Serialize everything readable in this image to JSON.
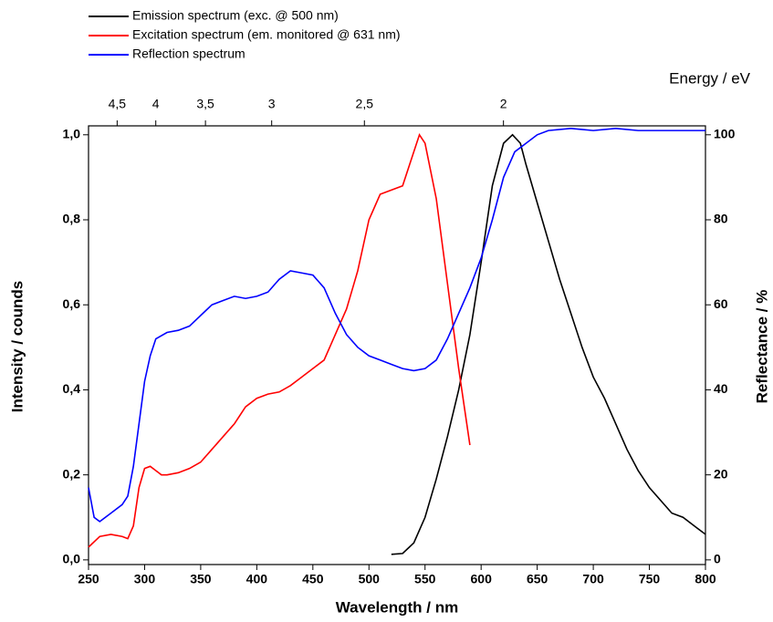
{
  "chart_data": {
    "type": "line",
    "xlabel": "Wavelength / nm",
    "ylabel": "Intensity / counds",
    "y2label": "Reflectance / %",
    "x2label": "Energy / eV",
    "xlim": [
      250,
      800
    ],
    "xticks": [
      250,
      300,
      350,
      400,
      450,
      500,
      550,
      600,
      650,
      700,
      750,
      800
    ],
    "ylim": [
      -0.011,
      1.021
    ],
    "yticks": [
      {
        "value": 0,
        "label": "0,0"
      },
      {
        "value": 0.2,
        "label": "0,2"
      },
      {
        "value": 0.4,
        "label": "0,4"
      },
      {
        "value": 0.6,
        "label": "0,6"
      },
      {
        "value": 0.8,
        "label": "0,8"
      },
      {
        "value": 1.0,
        "label": "1,0"
      }
    ],
    "y2lim": [
      -1.1,
      102.1
    ],
    "y2ticks": [
      0,
      20,
      40,
      60,
      80,
      100
    ],
    "x2ticks": [
      {
        "value": 4.5,
        "label": "4,5"
      },
      {
        "value": 4,
        "label": "4"
      },
      {
        "value": 3.5,
        "label": "3,5"
      },
      {
        "value": 3,
        "label": "3"
      },
      {
        "value": 2.5,
        "label": "2,5"
      },
      {
        "value": 2,
        "label": "2"
      }
    ],
    "series": [
      {
        "name": "Emission spectrum (exc. @ 500 nm)",
        "color": "#000000",
        "x": [
          520,
          530,
          540,
          550,
          560,
          570,
          580,
          590,
          600,
          610,
          620,
          628,
          635,
          640,
          650,
          660,
          670,
          680,
          690,
          700,
          710,
          720,
          730,
          740,
          750,
          760,
          770,
          780,
          790,
          800
        ],
        "values": [
          0.013,
          0.015,
          0.04,
          0.1,
          0.19,
          0.29,
          0.4,
          0.53,
          0.7,
          0.88,
          0.98,
          1.0,
          0.98,
          0.93,
          0.84,
          0.75,
          0.66,
          0.58,
          0.5,
          0.43,
          0.38,
          0.32,
          0.26,
          0.21,
          0.17,
          0.14,
          0.11,
          0.1,
          0.08,
          0.06
        ]
      },
      {
        "name": "Excitation spectrum (em. monitored @ 631 nm)",
        "color": "#ff0000",
        "x": [
          250,
          260,
          270,
          280,
          285,
          290,
          295,
          300,
          305,
          310,
          315,
          320,
          330,
          340,
          350,
          360,
          370,
          380,
          390,
          400,
          410,
          420,
          430,
          440,
          450,
          460,
          470,
          480,
          490,
          500,
          510,
          520,
          530,
          540,
          545,
          550,
          560,
          570,
          580,
          590
        ],
        "values": [
          0.03,
          0.055,
          0.06,
          0.055,
          0.05,
          0.08,
          0.17,
          0.215,
          0.22,
          0.21,
          0.2,
          0.2,
          0.205,
          0.215,
          0.23,
          0.26,
          0.29,
          0.32,
          0.36,
          0.38,
          0.39,
          0.395,
          0.41,
          0.43,
          0.45,
          0.47,
          0.53,
          0.59,
          0.68,
          0.8,
          0.86,
          0.87,
          0.88,
          0.96,
          1.0,
          0.98,
          0.85,
          0.65,
          0.45,
          0.27
        ]
      },
      {
        "name": "Reflection spectrum",
        "color": "#0000ff",
        "axis": "y2",
        "x": [
          250,
          255,
          260,
          270,
          280,
          285,
          290,
          295,
          300,
          305,
          310,
          320,
          330,
          340,
          350,
          360,
          370,
          380,
          390,
          400,
          410,
          420,
          430,
          440,
          450,
          460,
          470,
          480,
          490,
          500,
          510,
          520,
          530,
          540,
          550,
          560,
          570,
          580,
          590,
          600,
          610,
          620,
          630,
          640,
          650,
          660,
          680,
          700,
          720,
          740,
          760,
          780,
          800
        ],
        "values": [
          17,
          10,
          9,
          11,
          13,
          15,
          22,
          32,
          42,
          48,
          52,
          53.5,
          54,
          55,
          57.5,
          60,
          61,
          62,
          61.5,
          62,
          63,
          66,
          68,
          67.5,
          67,
          64,
          58,
          53,
          50,
          48,
          47,
          46,
          45,
          44.5,
          45,
          47,
          52,
          58,
          64,
          71,
          80,
          90,
          96,
          98,
          100,
          101,
          101.5,
          101,
          101.5,
          101,
          101,
          101,
          101
        ]
      }
    ]
  }
}
